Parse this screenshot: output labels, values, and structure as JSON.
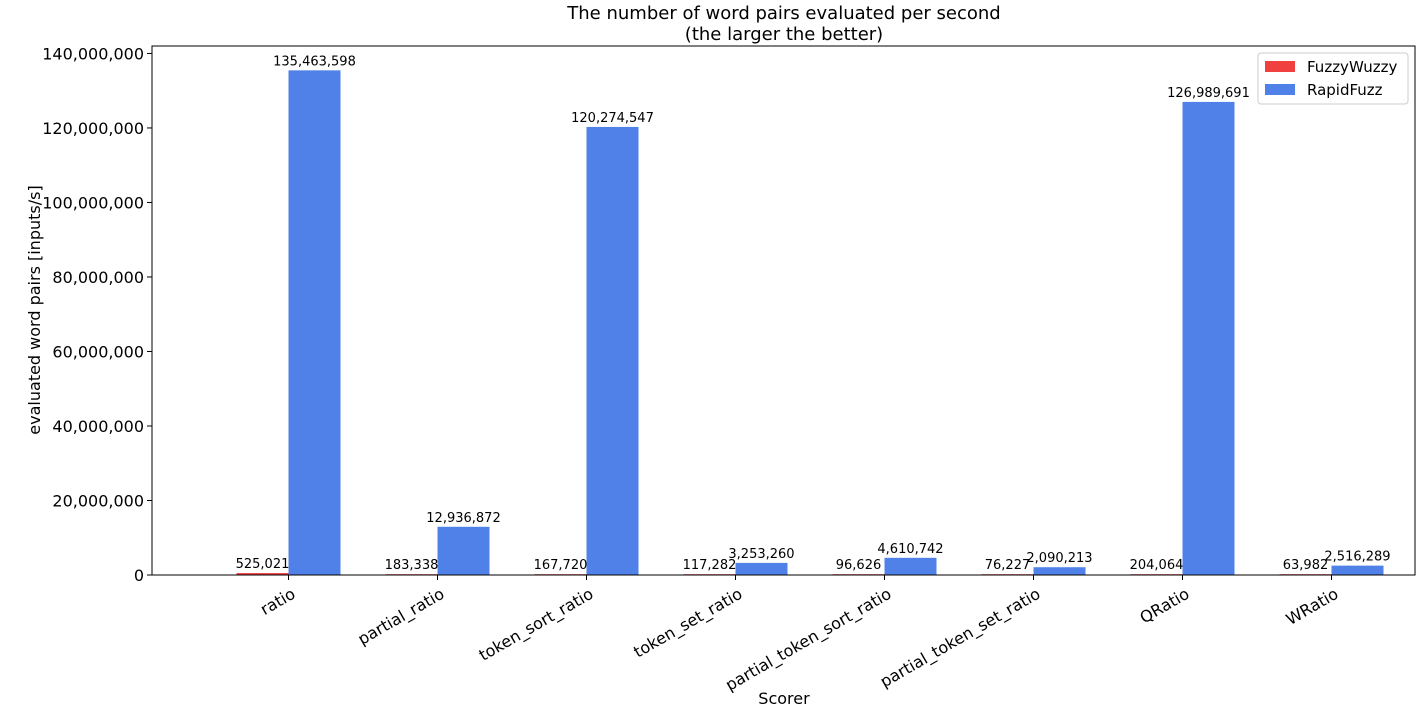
{
  "chart_data": {
    "type": "bar",
    "title": "The number of word pairs evaluated per second",
    "subtitle": "(the larger the better)",
    "xlabel": "Scorer",
    "ylabel": "evaluated word pairs [inputs/s]",
    "ylim": [
      0,
      142000000
    ],
    "yticks": [
      0,
      20000000,
      40000000,
      60000000,
      80000000,
      100000000,
      120000000,
      140000000
    ],
    "ytick_labels": [
      "0",
      "20,000,000",
      "40,000,000",
      "60,000,000",
      "80,000,000",
      "100,000,000",
      "120,000,000",
      "140,000,000"
    ],
    "categories": [
      "ratio",
      "partial_ratio",
      "token_sort_ratio",
      "token_set_ratio",
      "partial_token_sort_ratio",
      "partial_token_set_ratio",
      "QRatio",
      "WRatio"
    ],
    "series": [
      {
        "name": "FuzzyWuzzy",
        "color": "#f14040",
        "values": [
          525021,
          183338,
          167720,
          117282,
          96626,
          76227,
          204064,
          63982
        ],
        "labels": [
          "525,021",
          "183,338",
          "167,720",
          "117,282",
          "96,626",
          "76,227",
          "204,064",
          "63,982"
        ]
      },
      {
        "name": "RapidFuzz",
        "color": "#5081e8",
        "values": [
          135463598,
          12936872,
          120274547,
          3253260,
          4610742,
          2090213,
          126989691,
          2516289
        ],
        "labels": [
          "135,463,598",
          "12,936,872",
          "120,274,547",
          "3,253,260",
          "4,610,742",
          "2,090,213",
          "126,989,691",
          "2,516,289"
        ]
      }
    ],
    "grid": false,
    "legend_position": "top-right"
  }
}
